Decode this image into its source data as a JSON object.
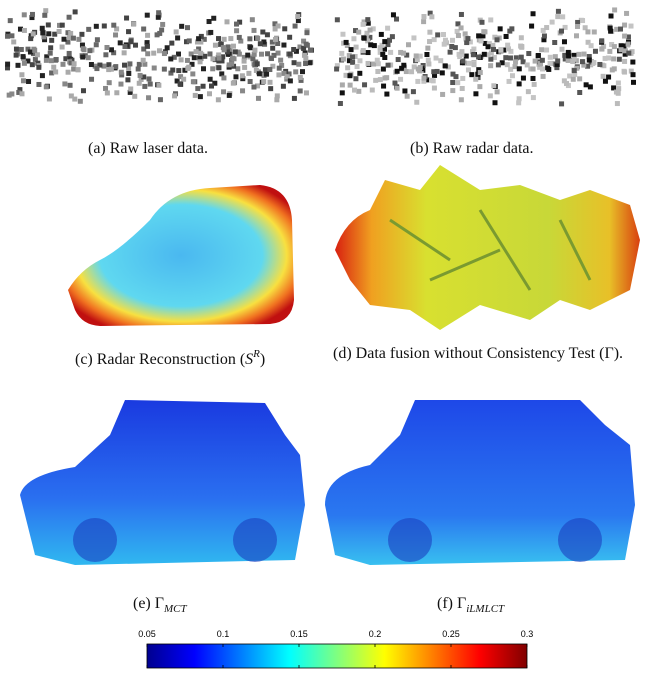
{
  "panels": [
    {
      "caption": [
        {
          "text": "(a) Raw laser data."
        }
      ]
    },
    {
      "caption": [
        {
          "text": "(b) Raw radar data."
        }
      ]
    },
    {
      "caption": [
        {
          "text": "(c) Radar Reconstruction ("
        },
        {
          "text": "S",
          "style": "italic"
        },
        {
          "text": "R",
          "style": "sup"
        },
        {
          "text": ")"
        }
      ]
    },
    {
      "caption": [
        {
          "text": "(d) Data fusion without Consistency Test (Γ)."
        }
      ]
    },
    {
      "caption": [
        {
          "text": "(e) Γ"
        },
        {
          "text": "MCT",
          "style": "sub"
        }
      ]
    },
    {
      "caption": [
        {
          "text": "(f) Γ"
        },
        {
          "text": "iLMLCT",
          "style": "sub"
        }
      ]
    }
  ],
  "colorbar": {
    "clim": [
      0.05,
      0.3
    ],
    "ticks": [
      0.05,
      0.1,
      0.15,
      0.2,
      0.25,
      0.3
    ]
  }
}
